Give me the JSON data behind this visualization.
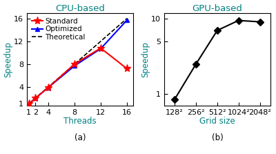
{
  "cpu_title": "CPU-based",
  "cpu_xlabel": "Threads",
  "cpu_ylabel": "Speedup",
  "cpu_xlabel_sub": "(a)",
  "cpu_threads": [
    1,
    2,
    4,
    8,
    12,
    16
  ],
  "cpu_standard": [
    1,
    2,
    3.9,
    8.0,
    10.8,
    7.2
  ],
  "cpu_optimized": [
    1,
    2,
    3.9,
    7.7,
    10.7,
    15.7
  ],
  "cpu_theoretical": [
    1,
    2,
    4,
    8,
    12,
    16
  ],
  "cpu_xlim_min": 0.7,
  "cpu_xlim_max": 17,
  "cpu_ylim_min": 0.7,
  "cpu_ylim_max": 17,
  "cpu_xticks": [
    1,
    2,
    4,
    8,
    12,
    16
  ],
  "cpu_yticks": [
    1,
    4,
    8,
    12,
    16
  ],
  "cpu_title_color": "#008080",
  "cpu_ylabel_color": "#008080",
  "cpu_xlabel_color": "#008080",
  "cpu_standard_color": "red",
  "cpu_optimized_color": "blue",
  "cpu_theoretical_color": "black",
  "gpu_title": "GPU-based",
  "gpu_xlabel": "Grid size",
  "gpu_ylabel": "Speedup",
  "gpu_xlabel_sub": "(b)",
  "gpu_x": [
    0,
    1,
    2,
    3,
    4
  ],
  "gpu_xticklabels": [
    "128²",
    "256²",
    "512²",
    "1024²",
    "2048²"
  ],
  "gpu_speedup": [
    0.85,
    2.5,
    7.0,
    9.5,
    9.1
  ],
  "gpu_yticks": [
    1,
    5,
    10
  ],
  "gpu_title_color": "#008080",
  "gpu_ylabel_color": "#008080",
  "gpu_xlabel_color": "#008080",
  "gpu_line_color": "black",
  "gpu_marker": "D",
  "bg_color": "#ffffff",
  "plot_bg_color": "#ffffff",
  "title_fontsize": 9.5,
  "label_fontsize": 8.5,
  "tick_fontsize": 8,
  "legend_fontsize": 7.5
}
